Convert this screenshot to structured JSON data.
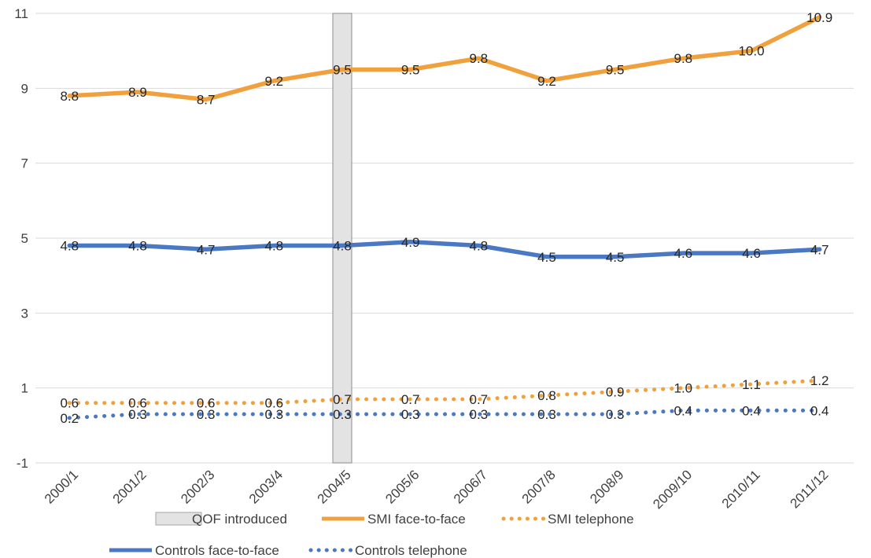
{
  "chart_data": {
    "type": "line",
    "categories": [
      "2000/1",
      "2001/2",
      "2002/3",
      "2003/4",
      "2004/5",
      "2005/6",
      "2006/7",
      "2007/8",
      "2008/9",
      "2009/10",
      "2010/11",
      "2011/12"
    ],
    "ylim": [
      -1,
      11
    ],
    "yticks": [
      -1,
      1,
      3,
      5,
      7,
      9,
      11
    ],
    "grid": true,
    "legend_position": "bottom",
    "highlight": {
      "label": "QOF introduced",
      "category": "2004/5",
      "color": "#e3e3e3"
    },
    "series": [
      {
        "name": "SMI face-to-face",
        "style": "solid",
        "color": "#f0a03c",
        "values": [
          8.8,
          8.9,
          8.7,
          9.2,
          9.5,
          9.5,
          9.8,
          9.2,
          9.5,
          9.8,
          10.0,
          10.9
        ],
        "labels": [
          "8.8",
          "8.9",
          "8.7",
          "9.2",
          "9.5",
          "9.5",
          "9.8",
          "9.2",
          "9.5",
          "9.8",
          "10.0",
          "10.9"
        ]
      },
      {
        "name": "SMI telephone",
        "style": "dotted",
        "color": "#f0a03c",
        "values": [
          0.6,
          0.6,
          0.6,
          0.6,
          0.7,
          0.7,
          0.7,
          0.8,
          0.9,
          1.0,
          1.1,
          1.2
        ],
        "labels": [
          "0.6",
          "0.6",
          "0.6",
          "0.6",
          "0.7",
          "0.7",
          "0.7",
          "0.8",
          "0.9",
          "1.0",
          "1.1",
          "1.2"
        ]
      },
      {
        "name": "Controls face-to-face",
        "style": "solid",
        "color": "#4a78c2",
        "values": [
          4.8,
          4.8,
          4.7,
          4.8,
          4.8,
          4.9,
          4.8,
          4.5,
          4.5,
          4.6,
          4.6,
          4.7
        ],
        "labels": [
          "4.8",
          "4.8",
          "4.7",
          "4.8",
          "4.8",
          "4.9",
          "4.8",
          "4.5",
          "4.5",
          "4.6",
          "4.6",
          "4.7"
        ]
      },
      {
        "name": "Controls telephone",
        "style": "dotted",
        "color": "#4a78c2",
        "values": [
          0.2,
          0.3,
          0.3,
          0.3,
          0.3,
          0.3,
          0.3,
          0.3,
          0.3,
          0.4,
          0.4,
          0.4
        ],
        "labels": [
          "0.2",
          "0.3",
          "0.3",
          "0.3",
          "0.3",
          "0.3",
          "0.3",
          "0.3",
          "0.3",
          "0.4",
          "0.4",
          "0.4"
        ]
      }
    ]
  }
}
